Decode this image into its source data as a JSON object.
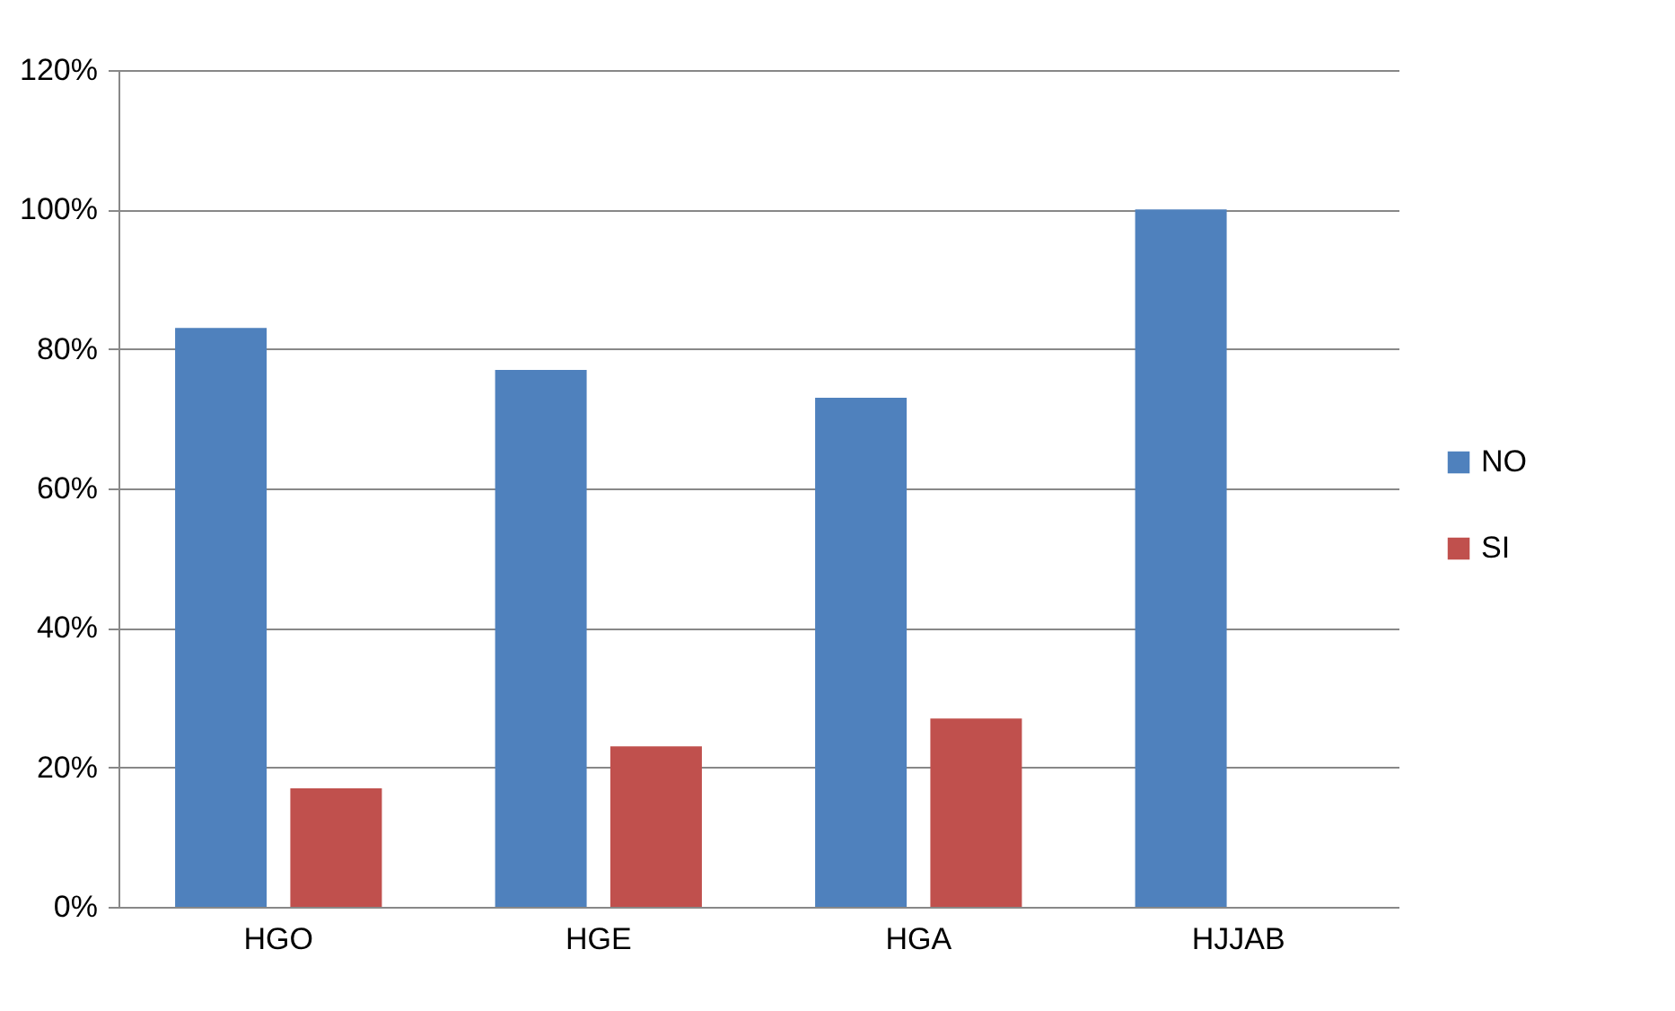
{
  "chart_data": {
    "type": "bar",
    "categories": [
      "HGO",
      "HGE",
      "HGA",
      "HJJAB"
    ],
    "series": [
      {
        "name": "NO",
        "color": "#4f81bd",
        "values": [
          83,
          77,
          73,
          100
        ]
      },
      {
        "name": "SI",
        "color": "#c0504d",
        "values": [
          17,
          23,
          27,
          0
        ]
      }
    ],
    "ylim": [
      0,
      120
    ],
    "yticks": [
      {
        "value": 0,
        "label": "0%"
      },
      {
        "value": 20,
        "label": "20%"
      },
      {
        "value": 40,
        "label": "40%"
      },
      {
        "value": 60,
        "label": "60%"
      },
      {
        "value": 80,
        "label": "80%"
      },
      {
        "value": 100,
        "label": "100%"
      },
      {
        "value": 120,
        "label": "120%"
      }
    ],
    "grid": "y",
    "legend": "right"
  }
}
